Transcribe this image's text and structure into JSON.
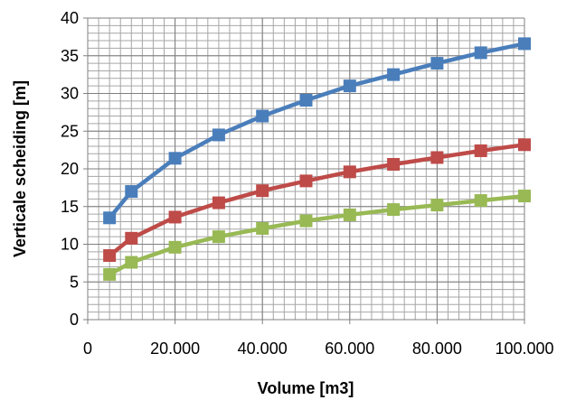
{
  "chart_data": {
    "type": "line",
    "title": "",
    "xlabel": "Volume [m3]",
    "ylabel": "Verticale scheiding [m]",
    "xlim": [
      0,
      100000
    ],
    "ylim": [
      0,
      40
    ],
    "x_major_ticks": [
      0,
      20000,
      40000,
      60000,
      80000,
      100000
    ],
    "x_tick_labels": [
      "0",
      "20.000",
      "40.000",
      "60.000",
      "80.000",
      "100.000"
    ],
    "y_major_ticks": [
      0,
      5,
      10,
      15,
      20,
      25,
      30,
      35,
      40
    ],
    "y_tick_labels": [
      "0",
      "5",
      "10",
      "15",
      "20",
      "25",
      "30",
      "35",
      "40"
    ],
    "x_minor_step": 2500,
    "y_minor_step": 1,
    "grid": true,
    "legend": "none",
    "x": [
      5000,
      10000,
      20000,
      30000,
      40000,
      50000,
      60000,
      70000,
      80000,
      90000,
      100000
    ],
    "series": [
      {
        "color": "#4a7ebb",
        "values": [
          13.5,
          17.0,
          21.4,
          24.5,
          27.0,
          29.1,
          31.0,
          32.5,
          34.0,
          35.4,
          36.6
        ]
      },
      {
        "color": "#be4b48",
        "values": [
          8.5,
          10.8,
          13.6,
          15.5,
          17.1,
          18.4,
          19.6,
          20.6,
          21.5,
          22.4,
          23.2
        ]
      },
      {
        "color": "#98b954",
        "values": [
          6.0,
          7.6,
          9.6,
          11.0,
          12.1,
          13.1,
          13.9,
          14.6,
          15.2,
          15.8,
          16.4
        ]
      }
    ]
  }
}
